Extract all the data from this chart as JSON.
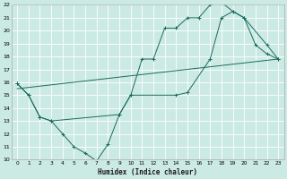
{
  "xlabel": "Humidex (Indice chaleur)",
  "bg_color": "#cceae4",
  "grid_color": "#ffffff",
  "line_color": "#1a6b5e",
  "xlim": [
    -0.5,
    23.5
  ],
  "ylim": [
    10,
    22
  ],
  "xticks": [
    0,
    1,
    2,
    3,
    4,
    5,
    6,
    7,
    8,
    9,
    10,
    11,
    12,
    13,
    14,
    15,
    16,
    17,
    18,
    19,
    20,
    21,
    22,
    23
  ],
  "yticks": [
    10,
    11,
    12,
    13,
    14,
    15,
    16,
    17,
    18,
    19,
    20,
    21,
    22
  ],
  "series1_x": [
    0,
    1,
    2,
    3,
    4,
    5,
    6,
    7,
    8,
    9,
    10,
    11,
    12,
    13,
    14,
    15,
    16,
    17,
    18,
    19,
    20,
    21,
    22,
    23
  ],
  "series1_y": [
    15.9,
    15.0,
    13.3,
    13.0,
    12.0,
    11.0,
    10.5,
    9.9,
    11.2,
    13.5,
    15.0,
    17.8,
    17.8,
    20.2,
    20.2,
    21.0,
    21.0,
    22.0,
    22.2,
    21.5,
    21.0,
    18.9,
    18.2,
    17.8
  ],
  "series2_x": [
    0,
    1,
    2,
    3,
    9,
    10,
    14,
    15,
    17,
    18,
    19,
    20,
    22,
    23
  ],
  "series2_y": [
    15.9,
    15.0,
    13.3,
    13.0,
    13.5,
    15.0,
    15.0,
    15.2,
    17.8,
    21.0,
    21.5,
    21.0,
    18.9,
    17.8
  ],
  "series3_x": [
    0,
    23
  ],
  "series3_y": [
    15.5,
    17.8
  ]
}
